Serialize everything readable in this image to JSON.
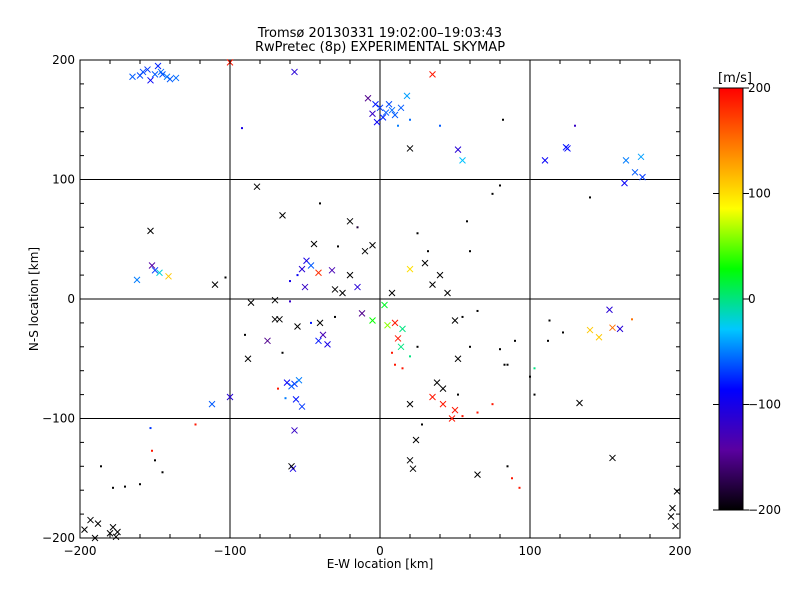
{
  "chart_data": {
    "type": "scatter",
    "title": "Tromsø 20130331 19:02:00–19:03:43",
    "subtitle": "RwPretec (8p) EXPERIMENTAL SKYMAP",
    "xlabel": "E-W location [km]",
    "ylabel": "N-S location [km]",
    "xlim": [
      -200,
      200
    ],
    "ylim": [
      -200,
      200
    ],
    "xticks": [
      -200,
      -100,
      0,
      100,
      200
    ],
    "yticks": [
      -200,
      -100,
      0,
      100,
      200
    ],
    "grid": true,
    "colorbar": {
      "label": "[m/s]",
      "min": -200,
      "max": 200,
      "ticks": [
        200,
        100,
        0,
        -100,
        -200
      ],
      "colormap": [
        "#000000",
        "#5a00a0",
        "#0000ff",
        "#00c8ff",
        "#00ff00",
        "#ffff00",
        "#ff8000",
        "#ff0000"
      ]
    },
    "points": [
      [
        -150,
        188,
        -60,
        "x"
      ],
      [
        -146,
        190,
        -55,
        "x"
      ],
      [
        -142,
        186,
        -50,
        "x"
      ],
      [
        -155,
        192,
        -70,
        "x"
      ],
      [
        -160,
        187,
        -65,
        "x"
      ],
      [
        -140,
        184,
        -60,
        "x"
      ],
      [
        -148,
        195,
        -75,
        "x"
      ],
      [
        -165,
        186,
        -60,
        "x"
      ],
      [
        -136,
        185,
        -55,
        "x"
      ],
      [
        -153,
        183,
        -90,
        "x"
      ],
      [
        -158,
        190,
        -65,
        "x"
      ],
      [
        -145,
        188,
        -62,
        "x"
      ],
      [
        -100,
        198,
        190,
        "x"
      ],
      [
        -57,
        190,
        -110,
        "x"
      ],
      [
        -92,
        143,
        -100,
        "d"
      ],
      [
        0,
        160,
        -70,
        "x"
      ],
      [
        4,
        156,
        -60,
        "x"
      ],
      [
        -3,
        163,
        -80,
        "x"
      ],
      [
        8,
        158,
        -55,
        "x"
      ],
      [
        2,
        152,
        -75,
        "x"
      ],
      [
        -5,
        155,
        -120,
        "x"
      ],
      [
        6,
        163,
        -65,
        "x"
      ],
      [
        10,
        154,
        -60,
        "x"
      ],
      [
        -2,
        148,
        -90,
        "x"
      ],
      [
        14,
        160,
        -60,
        "x"
      ],
      [
        18,
        170,
        -40,
        "x"
      ],
      [
        35,
        188,
        190,
        "x"
      ],
      [
        20,
        150,
        -55,
        "d"
      ],
      [
        -8,
        168,
        -150,
        "x"
      ],
      [
        12,
        145,
        -50,
        "d"
      ],
      [
        52,
        125,
        -110,
        "x"
      ],
      [
        55,
        116,
        -30,
        "x"
      ],
      [
        20,
        126,
        -200,
        "x"
      ],
      [
        82,
        150,
        -200,
        "d"
      ],
      [
        40,
        145,
        -60,
        "d"
      ],
      [
        130,
        145,
        -120,
        "d"
      ],
      [
        110,
        116,
        -90,
        "x"
      ],
      [
        124,
        127,
        -80,
        "x"
      ],
      [
        125,
        126,
        -85,
        "x"
      ],
      [
        164,
        116,
        -50,
        "x"
      ],
      [
        170,
        106,
        -60,
        "x"
      ],
      [
        174,
        119,
        -40,
        "x"
      ],
      [
        163,
        97,
        -90,
        "x"
      ],
      [
        175,
        102,
        -70,
        "x"
      ],
      [
        140,
        85,
        -200,
        "d"
      ],
      [
        -82,
        94,
        -200,
        "x"
      ],
      [
        -65,
        70,
        -200,
        "x"
      ],
      [
        -40,
        80,
        -200,
        "d"
      ],
      [
        -20,
        65,
        -200,
        "x"
      ],
      [
        -15,
        60,
        -180,
        "d"
      ],
      [
        -153,
        57,
        -200,
        "x"
      ],
      [
        -152,
        28,
        -140,
        "x"
      ],
      [
        -150,
        24,
        -70,
        "x"
      ],
      [
        -147,
        22,
        -20,
        "x"
      ],
      [
        -141,
        19,
        110,
        "x"
      ],
      [
        -162,
        16,
        -50,
        "x"
      ],
      [
        -110,
        12,
        -200,
        "x"
      ],
      [
        -103,
        18,
        -200,
        "d"
      ],
      [
        -49,
        32,
        -100,
        "x"
      ],
      [
        -52,
        25,
        -110,
        "x"
      ],
      [
        -46,
        28,
        -60,
        "x"
      ],
      [
        -41,
        22,
        180,
        "x"
      ],
      [
        -55,
        20,
        -90,
        "d"
      ],
      [
        -60,
        15,
        -100,
        "d"
      ],
      [
        -50,
        10,
        -120,
        "x"
      ],
      [
        -32,
        24,
        -130,
        "x"
      ],
      [
        -44,
        46,
        -200,
        "x"
      ],
      [
        -28,
        44,
        -200,
        "d"
      ],
      [
        -20,
        20,
        -200,
        "x"
      ],
      [
        -10,
        40,
        -200,
        "x"
      ],
      [
        -5,
        45,
        -200,
        "x"
      ],
      [
        -86,
        -3,
        -200,
        "x"
      ],
      [
        -70,
        -1,
        -200,
        "x"
      ],
      [
        -60,
        -2,
        -120,
        "d"
      ],
      [
        -90,
        -30,
        -200,
        "d"
      ],
      [
        -70,
        -17,
        -200,
        "x"
      ],
      [
        -67,
        -17,
        -200,
        "x"
      ],
      [
        -55,
        -23,
        -200,
        "x"
      ],
      [
        -40,
        -20,
        -200,
        "x"
      ],
      [
        -38,
        -30,
        -130,
        "x"
      ],
      [
        -41,
        -35,
        -80,
        "x"
      ],
      [
        -35,
        -38,
        -100,
        "x"
      ],
      [
        -46,
        -20,
        -80,
        "d"
      ],
      [
        -30,
        -15,
        -200,
        "d"
      ],
      [
        -88,
        -50,
        -200,
        "x"
      ],
      [
        -75,
        -35,
        -150,
        "x"
      ],
      [
        -65,
        -45,
        -200,
        "d"
      ],
      [
        -62,
        -70,
        -90,
        "x"
      ],
      [
        -57,
        -71,
        -70,
        "x"
      ],
      [
        -59,
        -73,
        -60,
        "x"
      ],
      [
        -54,
        -68,
        -50,
        "x"
      ],
      [
        -56,
        -84,
        -80,
        "x"
      ],
      [
        -52,
        -90,
        -70,
        "x"
      ],
      [
        -68,
        -75,
        190,
        "d"
      ],
      [
        -63,
        -83,
        -50,
        "d"
      ],
      [
        -100,
        -82,
        -110,
        "x"
      ],
      [
        -112,
        -88,
        -60,
        "x"
      ],
      [
        -123,
        -105,
        190,
        "d"
      ],
      [
        -153,
        -108,
        -70,
        "d"
      ],
      [
        -152,
        -127,
        190,
        "d"
      ],
      [
        -150,
        -135,
        -200,
        "d"
      ],
      [
        -145,
        -145,
        -200,
        "d"
      ],
      [
        -57,
        -110,
        -120,
        "x"
      ],
      [
        -58,
        -142,
        -100,
        "x"
      ],
      [
        -59,
        -140,
        -200,
        "x"
      ],
      [
        -186,
        -140,
        -200,
        "d"
      ],
      [
        -178,
        -158,
        -200,
        "d"
      ],
      [
        -170,
        -157,
        -200,
        "d"
      ],
      [
        -160,
        -155,
        -200,
        "d"
      ],
      [
        -197,
        -193,
        -200,
        "x"
      ],
      [
        -193,
        -185,
        -200,
        "x"
      ],
      [
        -188,
        -188,
        -200,
        "x"
      ],
      [
        -180,
        -196,
        -200,
        "x"
      ],
      [
        -178,
        -191,
        -200,
        "x"
      ],
      [
        -175,
        -195,
        -200,
        "x"
      ],
      [
        -176,
        -199,
        -200,
        "x"
      ],
      [
        -190,
        -200,
        -200,
        "x"
      ],
      [
        198,
        -161,
        -200,
        "x"
      ],
      [
        195,
        -175,
        -200,
        "x"
      ],
      [
        194,
        -182,
        -200,
        "x"
      ],
      [
        197,
        -190,
        -200,
        "x"
      ],
      [
        10,
        -20,
        190,
        "x"
      ],
      [
        15,
        -25,
        0,
        "x"
      ],
      [
        12,
        -33,
        190,
        "x"
      ],
      [
        14,
        -40,
        0,
        "x"
      ],
      [
        8,
        -45,
        190,
        "d"
      ],
      [
        10,
        -55,
        190,
        "d"
      ],
      [
        15,
        -58,
        190,
        "d"
      ],
      [
        20,
        -48,
        0,
        "d"
      ],
      [
        25,
        -40,
        -200,
        "d"
      ],
      [
        38,
        -70,
        -200,
        "x"
      ],
      [
        42,
        -75,
        -200,
        "x"
      ],
      [
        35,
        -82,
        190,
        "x"
      ],
      [
        42,
        -88,
        190,
        "x"
      ],
      [
        50,
        -93,
        190,
        "x"
      ],
      [
        48,
        -100,
        190,
        "x"
      ],
      [
        55,
        -98,
        190,
        "d"
      ],
      [
        65,
        -95,
        190,
        "d"
      ],
      [
        75,
        -88,
        190,
        "d"
      ],
      [
        52,
        -80,
        -200,
        "d"
      ],
      [
        24,
        -118,
        -200,
        "x"
      ],
      [
        20,
        -135,
        -200,
        "x"
      ],
      [
        22,
        -142,
        -200,
        "x"
      ],
      [
        65,
        -147,
        -200,
        "x"
      ],
      [
        85,
        -140,
        -200,
        "d"
      ],
      [
        93,
        -158,
        190,
        "d"
      ],
      [
        88,
        -150,
        190,
        "d"
      ],
      [
        20,
        -88,
        -200,
        "x"
      ],
      [
        28,
        -105,
        -200,
        "d"
      ],
      [
        52,
        -50,
        -200,
        "x"
      ],
      [
        60,
        -40,
        -200,
        "d"
      ],
      [
        80,
        -42,
        -200,
        "d"
      ],
      [
        83,
        -55,
        -200,
        "d"
      ],
      [
        50,
        -18,
        -200,
        "x"
      ],
      [
        55,
        -15,
        -200,
        "d"
      ],
      [
        65,
        -10,
        -200,
        "d"
      ],
      [
        85,
        -55,
        -200,
        "d"
      ],
      [
        90,
        -35,
        -200,
        "d"
      ],
      [
        100,
        -65,
        -200,
        "d"
      ],
      [
        103,
        -80,
        -200,
        "d"
      ],
      [
        103,
        -58,
        0,
        "d"
      ],
      [
        133,
        -87,
        -200,
        "x"
      ],
      [
        155,
        -133,
        -200,
        "x"
      ],
      [
        140,
        -26,
        110,
        "x"
      ],
      [
        146,
        -32,
        110,
        "x"
      ],
      [
        155,
        -24,
        150,
        "x"
      ],
      [
        160,
        -25,
        -110,
        "x"
      ],
      [
        153,
        -9,
        -110,
        "x"
      ],
      [
        168,
        -17,
        150,
        "d"
      ],
      [
        122,
        -28,
        -200,
        "d"
      ],
      [
        112,
        -35,
        -200,
        "d"
      ],
      [
        113,
        -18,
        -200,
        "d"
      ],
      [
        60,
        40,
        -200,
        "d"
      ],
      [
        58,
        65,
        -200,
        "d"
      ],
      [
        75,
        88,
        -200,
        "d"
      ],
      [
        80,
        95,
        -200,
        "d"
      ],
      [
        -25,
        5,
        -200,
        "x"
      ],
      [
        -30,
        8,
        -200,
        "x"
      ],
      [
        -15,
        10,
        -110,
        "x"
      ],
      [
        35,
        12,
        -200,
        "x"
      ],
      [
        45,
        5,
        -200,
        "x"
      ],
      [
        40,
        20,
        -200,
        "x"
      ],
      [
        30,
        30,
        -200,
        "x"
      ],
      [
        32,
        40,
        -200,
        "d"
      ],
      [
        25,
        55,
        -200,
        "d"
      ],
      [
        20,
        25,
        100,
        "x"
      ],
      [
        -5,
        -18,
        30,
        "x"
      ],
      [
        5,
        -22,
        60,
        "x"
      ],
      [
        -12,
        -12,
        -150,
        "x"
      ],
      [
        3,
        -5,
        20,
        "x"
      ],
      [
        8,
        5,
        -200,
        "x"
      ]
    ]
  }
}
